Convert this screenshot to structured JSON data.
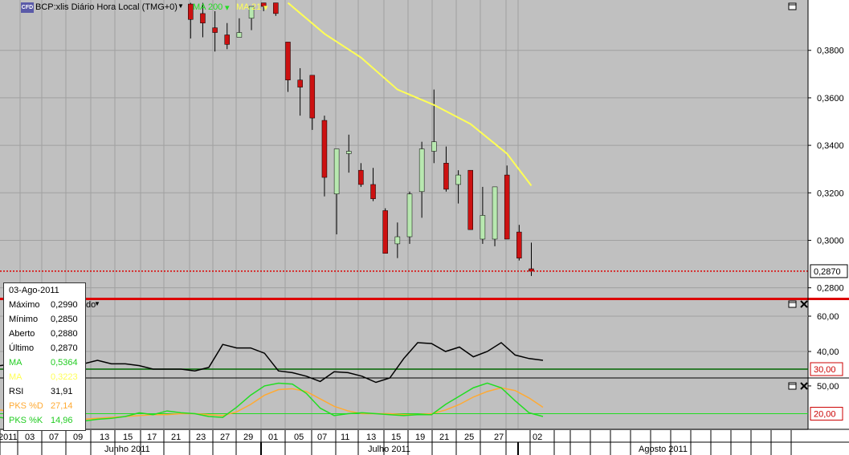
{
  "header": {
    "logo": "CFD",
    "title": "BCP:xlis Diário Hora Local (TMG+0)",
    "ma_labels": [
      "MA 200",
      "MA 21"
    ]
  },
  "colors": {
    "bull": "#b8e8b0",
    "bear": "#cc1111",
    "ma": "#ffff55",
    "rsi": "#000000",
    "pks_d": "#ffaa33",
    "pks_k": "#22dd22",
    "ref": "#006600",
    "price_line": "#dd0000",
    "bg": "#c0c0c0",
    "grid": "#a0a0a0"
  },
  "info_box": {
    "date": "03-Ago-2011",
    "rows": [
      {
        "label": "Máximo",
        "value": "0,2990",
        "color": "#000000"
      },
      {
        "label": "Mínimo",
        "value": "0,2850",
        "color": "#000000"
      },
      {
        "label": "Aberto",
        "value": "0,2880",
        "color": "#000000"
      },
      {
        "label": "Último",
        "value": "0,2870",
        "color": "#000000"
      },
      {
        "label": "MA",
        "value": "0,5364",
        "color": "#22cc22"
      },
      {
        "label": "MA",
        "value": "0,3223",
        "color": "#ffff55"
      },
      {
        "label": "RSI",
        "value": "31,91",
        "color": "#000000"
      },
      {
        "label": "PKS %D",
        "value": "27,14",
        "color": "#ffaa33"
      },
      {
        "label": "PKS %K",
        "value": "14,96",
        "color": "#22cc22"
      }
    ]
  },
  "rsi_label_tail": "do",
  "chart_data": [
    {
      "type": "candlestick",
      "ylim": [
        0.2765,
        0.3985
      ],
      "yticks": [
        "0,3800",
        "0,3600",
        "0,3400",
        "0,3200",
        "0,3000",
        "0,2800"
      ],
      "last_price_label": "0,2870",
      "last_price": 0.287,
      "x_ticks": [
        "2011",
        "03",
        "07",
        "09",
        "13",
        "15",
        "17",
        "21",
        "23",
        "27",
        "29",
        "01",
        "05",
        "07",
        "11",
        "13",
        "15",
        "19",
        "21",
        "25",
        "27",
        "02"
      ],
      "months": [
        "Junho 2011",
        "Julho 2011",
        "Agosto 2011"
      ],
      "candles": [
        {
          "o": 0.3995,
          "h": 0.4,
          "l": 0.385,
          "c": 0.393
        },
        {
          "o": 0.3955,
          "h": 0.4,
          "l": 0.3855,
          "c": 0.3915
        },
        {
          "o": 0.3895,
          "h": 0.3965,
          "l": 0.3795,
          "c": 0.3875
        },
        {
          "o": 0.3865,
          "h": 0.3915,
          "l": 0.3805,
          "c": 0.3825
        },
        {
          "o": 0.3855,
          "h": 0.3935,
          "l": 0.3855,
          "c": 0.3875
        },
        {
          "o": 0.3935,
          "h": 0.3985,
          "l": 0.3885,
          "c": 0.3985
        },
        {
          "o": 0.4,
          "h": 0.4,
          "l": 0.3965,
          "c": 0.3985
        },
        {
          "o": 0.4,
          "h": 0.4,
          "l": 0.3945,
          "c": 0.3955
        },
        {
          "o": 0.3835,
          "h": 0.3835,
          "l": 0.3625,
          "c": 0.3675
        },
        {
          "o": 0.3675,
          "h": 0.3725,
          "l": 0.3525,
          "c": 0.3645
        },
        {
          "o": 0.3695,
          "h": 0.3695,
          "l": 0.3465,
          "c": 0.3515
        },
        {
          "o": 0.3505,
          "h": 0.3525,
          "l": 0.3185,
          "c": 0.3265
        },
        {
          "o": 0.3195,
          "h": 0.3385,
          "l": 0.3025,
          "c": 0.3385
        },
        {
          "o": 0.3365,
          "h": 0.3445,
          "l": 0.3285,
          "c": 0.3375
        },
        {
          "o": 0.3295,
          "h": 0.3325,
          "l": 0.3225,
          "c": 0.3235
        },
        {
          "o": 0.3235,
          "h": 0.3305,
          "l": 0.3165,
          "c": 0.3175
        },
        {
          "o": 0.3125,
          "h": 0.3135,
          "l": 0.2945,
          "c": 0.2945
        },
        {
          "o": 0.2985,
          "h": 0.3075,
          "l": 0.2925,
          "c": 0.3015
        },
        {
          "o": 0.3015,
          "h": 0.3205,
          "l": 0.2985,
          "c": 0.3195
        },
        {
          "o": 0.3205,
          "h": 0.3415,
          "l": 0.3095,
          "c": 0.3385
        },
        {
          "o": 0.3375,
          "h": 0.3635,
          "l": 0.3325,
          "c": 0.3415
        },
        {
          "o": 0.3325,
          "h": 0.3395,
          "l": 0.3205,
          "c": 0.3215
        },
        {
          "o": 0.3235,
          "h": 0.3295,
          "l": 0.3155,
          "c": 0.3275
        },
        {
          "o": 0.3295,
          "h": 0.3295,
          "l": 0.3045,
          "c": 0.3045
        },
        {
          "o": 0.3005,
          "h": 0.3225,
          "l": 0.2985,
          "c": 0.3105
        },
        {
          "o": 0.3005,
          "h": 0.3225,
          "l": 0.2975,
          "c": 0.3225
        },
        {
          "o": 0.3275,
          "h": 0.3315,
          "l": 0.3005,
          "c": 0.3005
        },
        {
          "o": 0.3035,
          "h": 0.3065,
          "l": 0.2915,
          "c": 0.2925
        },
        {
          "o": 0.288,
          "h": 0.299,
          "l": 0.285,
          "c": 0.287
        }
      ],
      "ma21": [
        {
          "i": 8,
          "v": 0.4
        },
        {
          "i": 11,
          "v": 0.387
        },
        {
          "i": 14,
          "v": 0.377
        },
        {
          "i": 17,
          "v": 0.3635
        },
        {
          "i": 20,
          "v": 0.357
        },
        {
          "i": 23,
          "v": 0.349
        },
        {
          "i": 26,
          "v": 0.3365
        },
        {
          "i": 28,
          "v": 0.323
        }
      ]
    },
    {
      "type": "line",
      "name": "RSI",
      "ylim": [
        25,
        70
      ],
      "yticks": [
        "60,00",
        "40,00"
      ],
      "ref_label": "30,00",
      "ref_value": 30,
      "values": [
        32,
        33,
        32,
        32,
        35,
        31,
        33,
        35,
        33,
        33,
        32,
        30,
        30,
        30,
        29,
        31,
        44,
        42,
        42,
        39,
        29,
        28,
        26,
        23,
        28.5,
        28,
        26,
        22.5,
        25,
        36,
        45,
        44.5,
        40,
        42.5,
        37,
        40,
        45,
        38,
        36,
        35
      ]
    },
    {
      "type": "line",
      "name": "PKS",
      "ylim": [
        4,
        56
      ],
      "yticks": [
        "50,00"
      ],
      "ref_label": "20,00",
      "ref_value": 20,
      "pks_k": [
        16,
        14,
        20,
        18,
        14,
        10,
        12,
        14,
        15,
        17,
        21,
        19,
        23,
        21,
        20,
        17,
        16,
        27,
        40,
        50,
        53,
        52,
        42,
        26,
        18,
        20,
        21,
        20,
        19,
        18,
        19,
        19,
        30,
        39,
        48,
        53,
        48,
        34,
        21,
        17
      ],
      "pks_d": [
        24,
        22,
        20,
        17,
        16,
        14,
        14,
        15,
        16,
        17,
        18,
        19,
        19,
        20,
        20,
        19,
        18,
        22,
        30,
        40,
        46,
        47,
        44,
        36,
        28,
        23,
        20,
        20,
        20,
        19,
        19,
        20,
        24,
        30,
        38,
        44,
        48,
        45,
        37,
        27
      ]
    }
  ]
}
